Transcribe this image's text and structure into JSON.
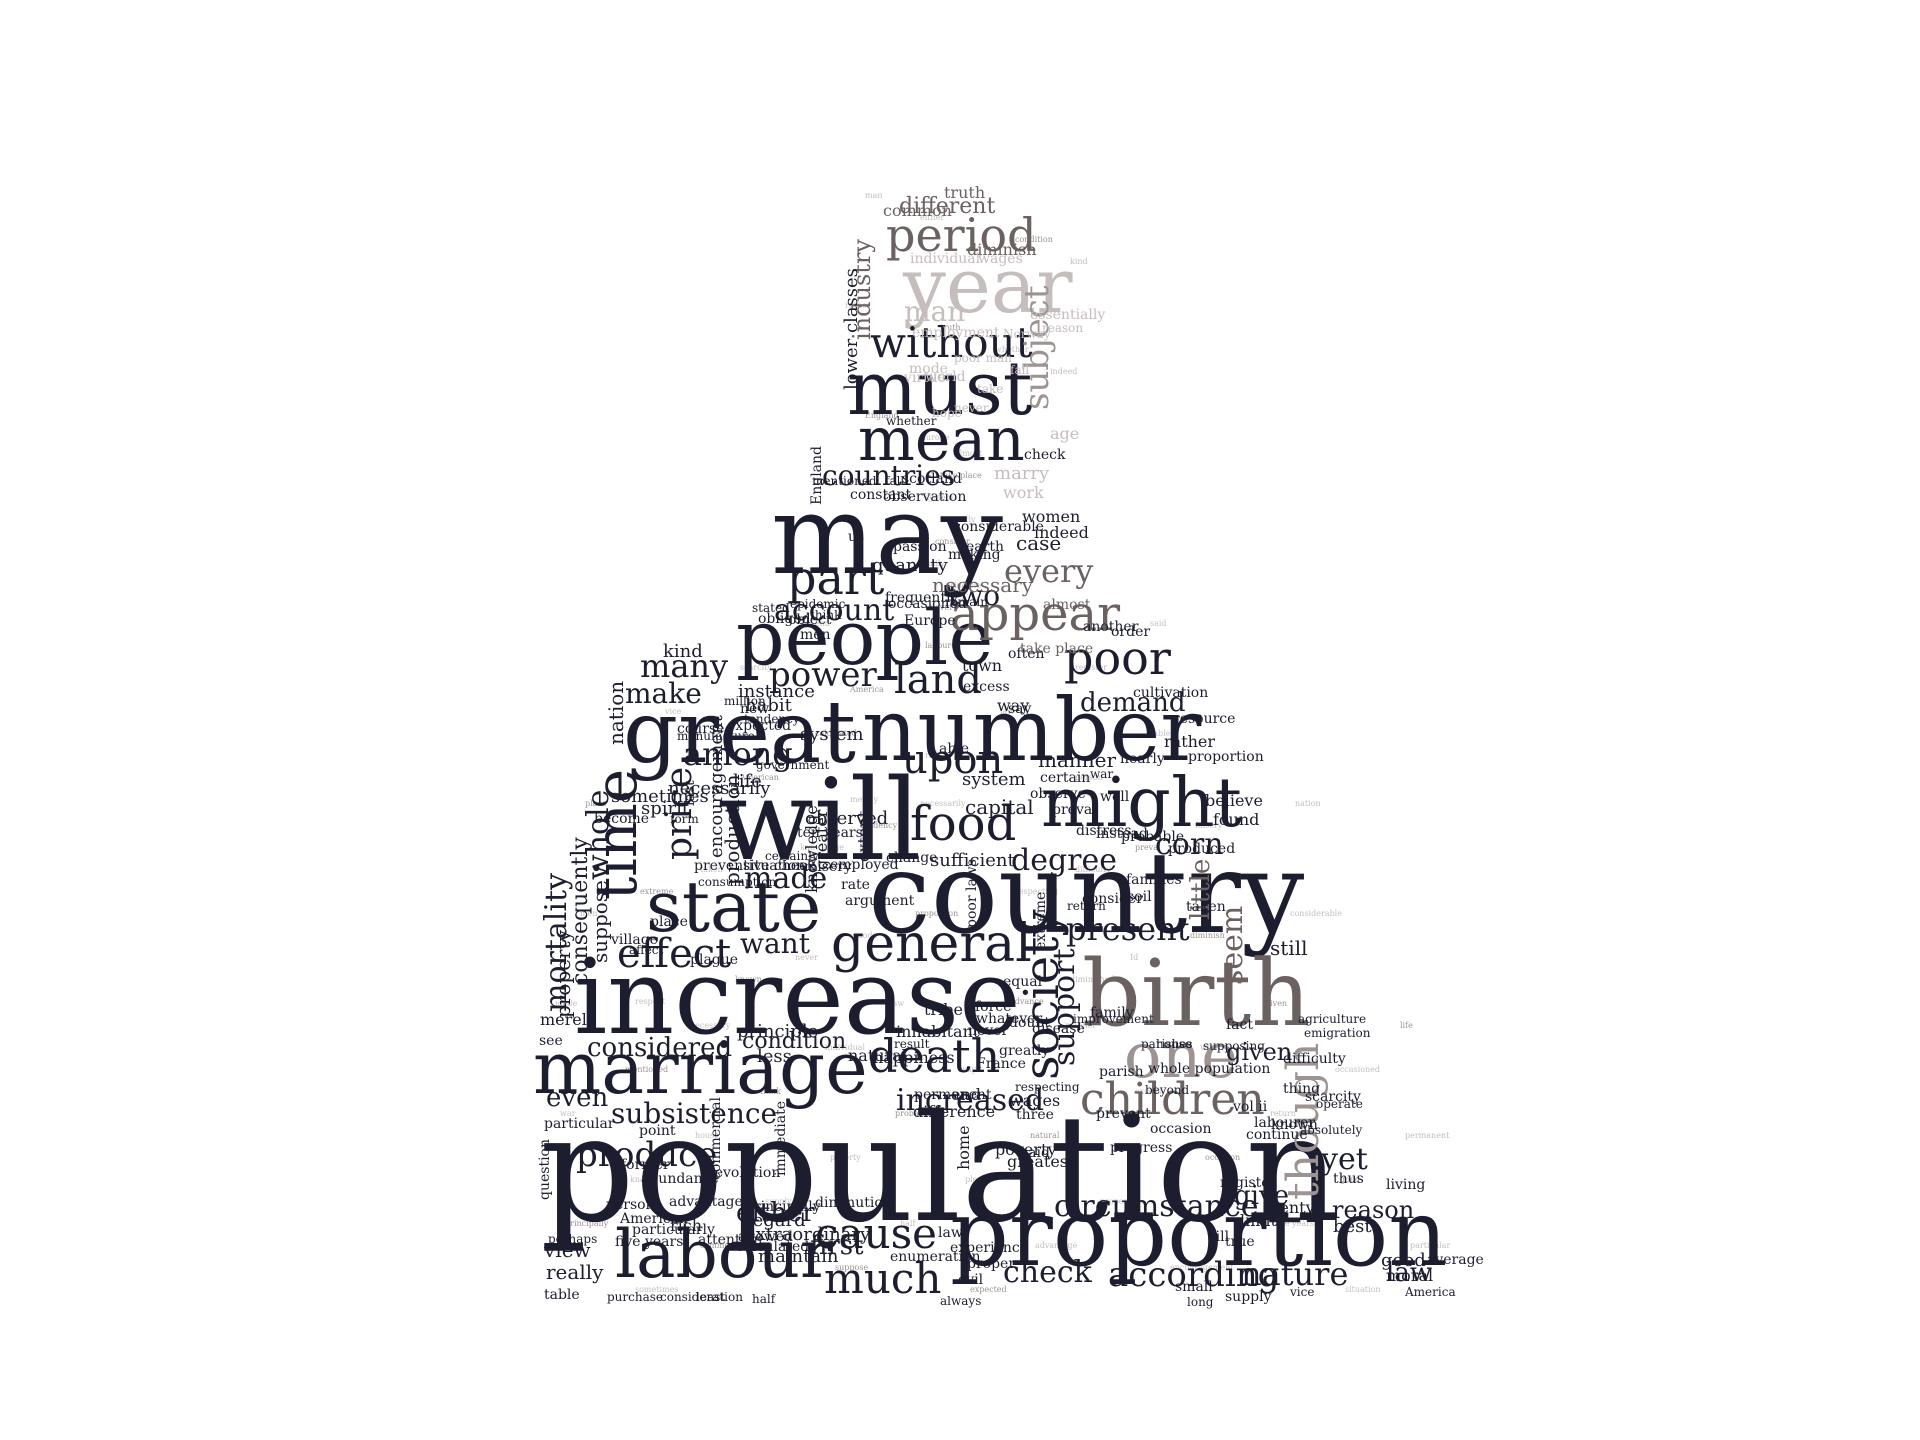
{
  "image": {
    "kind": "word-cloud",
    "shape": "silhouette-of-a-seated-person",
    "colors": {
      "background": "#ffffff",
      "primary": "#1c1d2e",
      "secondary": "#6b6161",
      "tertiary": "#9d9393",
      "faint": "#c6bdbd"
    }
  },
  "words": [
    "population",
    "country",
    "increase",
    "will",
    "number",
    "birth",
    "proportion",
    "marriage",
    "great",
    "may",
    "state",
    "people",
    "labour",
    "might",
    "time",
    "must",
    "mean",
    "year",
    "one",
    "death",
    "children",
    "general",
    "society",
    "food",
    "appear",
    "poor",
    "part",
    "much",
    "cause",
    "according",
    "upon",
    "period",
    "without",
    "effect",
    "subject",
    "though",
    "land",
    "power",
    "produce",
    "price",
    "many",
    "make",
    "among",
    "countries",
    "present",
    "corn",
    "nature",
    "circumstance",
    "check",
    "every",
    "account",
    "even",
    "subsistence",
    "degree",
    "yet",
    "whole",
    "mortality",
    "support",
    "seem",
    "considered",
    "increased",
    "want",
    "made",
    "demand",
    "man",
    "different",
    "industry",
    "law",
    "first",
    "either",
    "reason",
    "give",
    "given",
    "little",
    "condition",
    "case",
    "two",
    "necessary",
    "quantity",
    "kind",
    "habit",
    "system",
    "manner",
    "capital",
    "rather",
    "sufficient",
    "observed",
    "life",
    "still",
    "truth",
    "common",
    "employment",
    "individual",
    "lower classes",
    "whether",
    "age",
    "marry",
    "work",
    "women",
    "indeed",
    "observation",
    "constant",
    "mentioned",
    "fall",
    "England",
    "instance",
    "town",
    "way",
    "cultivation",
    "Europe",
    "object",
    "frequently",
    "occasioned",
    "remain",
    "almost",
    "another",
    "order",
    "think",
    "often",
    "take place",
    "new",
    "say",
    "excess",
    "able",
    "system",
    "certain",
    "observe",
    "war",
    "well",
    "nearly",
    "believe",
    "found",
    "probable",
    "change",
    "consider",
    "soil",
    "tribe",
    "return",
    "improvement",
    "family",
    "parish",
    "parishes",
    "house",
    "less",
    "principle",
    "inhabitant",
    "happiness",
    "natural",
    "result",
    "never",
    "greatly",
    "France",
    "permanent",
    "difference",
    "end",
    "wages",
    "three",
    "poverty",
    "greatest",
    "said",
    "home",
    "progress",
    "occasion",
    "vol ii",
    "labourer",
    "prevent",
    "continue",
    "known",
    "thing",
    "scarcity",
    "thus",
    "living",
    "plenty",
    "limit",
    "register",
    "true",
    "best",
    "good",
    "average",
    "America",
    "moral",
    "small",
    "supply",
    "long",
    "vice",
    "always",
    "evil",
    "proper",
    "experience",
    "law",
    "enumeration",
    "diminution",
    "principally",
    "allowed",
    "calculated",
    "consideration",
    "least",
    "half",
    "purchase",
    "table",
    "really",
    "view",
    "five years",
    "particularly",
    "rich",
    "attention",
    "revolution",
    "commercial",
    "immediate",
    "American",
    "abundance",
    "former",
    "advantage",
    "perhaps",
    "person",
    "question",
    "point",
    "particular",
    "see",
    "merely",
    "property",
    "consequently",
    "suppose",
    "village",
    "place",
    "preventive check",
    "production",
    "encouragement",
    "last",
    "necessarily",
    "form",
    "spirit",
    "sometimes",
    "become",
    "nation",
    "manufacture",
    "course",
    "expected",
    "million",
    "tendency",
    "government",
    "certainly",
    "situation",
    "employed",
    "misery",
    "rate",
    "argument",
    "greater",
    "extent",
    "knowledge",
    "ten years",
    "plague",
    "consumption",
    "affect",
    "preval",
    "distress",
    "produced",
    "instead",
    "families",
    "taken",
    "fact",
    "supposing",
    "agriculture",
    "emigration",
    "difficulty",
    "till",
    "whole population",
    "equal",
    "poor laws",
    "extreme",
    "disease",
    "whatever",
    "doubt",
    "beyond",
    "respecting",
    "force",
    "stated",
    "obliged",
    "epidemic",
    "men",
    "us",
    "passion",
    "absolutely",
    "operate",
    "proportion",
    "resource",
    "maintain",
    "extraordinary",
    "regard",
    "considerable",
    "making",
    "earth",
    "scotland",
    "check",
    "mode",
    "virtue",
    "world",
    "poor man",
    "wages",
    "diminish",
    "Norway",
    "essentially",
    "fall",
    "take",
    "never",
    "hope",
    "reason",
    "ii p",
    "Id p",
    "Id",
    "p",
    "far",
    "profit",
    "Young",
    "known",
    "together",
    "dearth",
    "necessity",
    "supposed",
    "diminished",
    "provision",
    "famine",
    "value",
    "evident",
    "respect",
    "possible",
    "opinion",
    "generally",
    "operation",
    "advance",
    "opposite",
    "sensible"
  ]
}
